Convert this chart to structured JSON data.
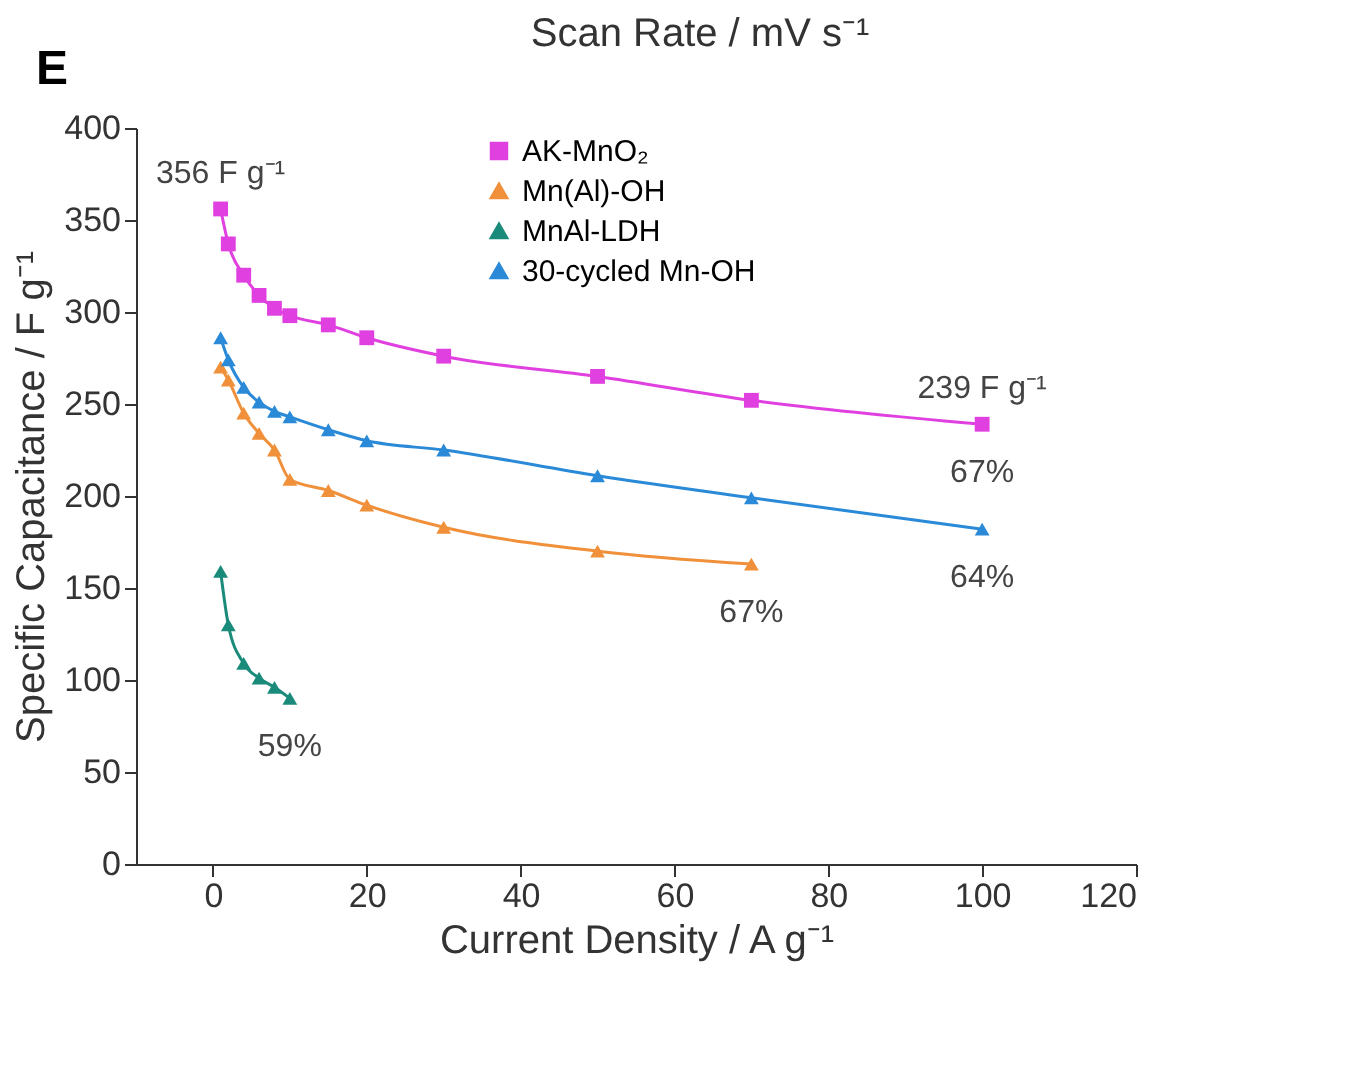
{
  "chart_data": {
    "type": "line",
    "title": "E",
    "xlabel": "Current Density / A g⁻¹",
    "ylabel": "Specific Capacitance / F g⁻¹",
    "annotations": [
      "Scan Rate / mV s⁻¹",
      {
        "text": "356 F g⁻¹",
        "x": 1,
        "y": 356
      },
      {
        "text": "239 F g⁻¹",
        "x": 100,
        "y": 239
      },
      {
        "text": "67%",
        "x": 100,
        "y": 239
      },
      {
        "text": "67%",
        "x": 70,
        "y": 163
      },
      {
        "text": "64%",
        "x": 100,
        "y": 182
      },
      {
        "text": "59%",
        "x": 10,
        "y": 90
      }
    ],
    "xlim": [
      -10,
      120
    ],
    "xticks": [
      0,
      20,
      40,
      60,
      80,
      100,
      120
    ],
    "ylim": [
      0,
      400
    ],
    "yticks": [
      0,
      50,
      100,
      150,
      200,
      250,
      300,
      350,
      400
    ],
    "legend": "top right",
    "grid": false,
    "line_style": "solid",
    "series": [
      {
        "name": "AK-MnO₂",
        "color": "#e040e0",
        "marker": "square",
        "x": [
          1,
          2,
          4,
          6,
          8,
          10,
          15,
          20,
          30,
          50,
          70,
          100
        ],
        "values": [
          356,
          337,
          320,
          309,
          302,
          298,
          293,
          286,
          276,
          265,
          252,
          239
        ]
      },
      {
        "name": "Mn(Al)-OH",
        "color": "#f0903a",
        "marker": "triangle",
        "x": [
          1,
          2,
          4,
          6,
          8,
          10,
          15,
          20,
          30,
          50,
          70
        ],
        "values": [
          270,
          263,
          245,
          234,
          225,
          209,
          203,
          195,
          183,
          170,
          163
        ]
      },
      {
        "name": "MnAl-LDH",
        "color": "#1a8a7a",
        "marker": "triangle",
        "x": [
          1,
          2,
          4,
          6,
          8,
          10
        ],
        "values": [
          159,
          130,
          109,
          101,
          96,
          90
        ]
      },
      {
        "name": "30-cycled Mn-OH",
        "color": "#2a8ad8",
        "marker": "triangle",
        "x": [
          1,
          2,
          4,
          6,
          8,
          10,
          15,
          20,
          30,
          50,
          70,
          100
        ],
        "values": [
          286,
          274,
          259,
          251,
          246,
          243,
          236,
          230,
          225,
          211,
          199,
          182
        ]
      }
    ]
  }
}
